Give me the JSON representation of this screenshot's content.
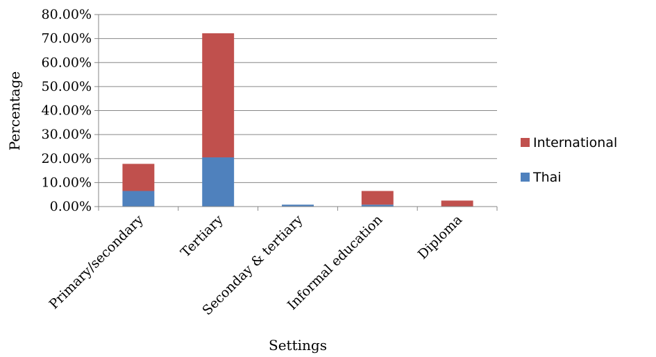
{
  "chart_data": {
    "type": "bar",
    "stacked": true,
    "title": "",
    "xlabel": "Settings",
    "ylabel": "Percentage",
    "ylim": [
      0,
      0.8
    ],
    "y_tick_step": 0.1,
    "y_tick_labels": [
      "0.00%",
      "10.00%",
      "20.00%",
      "30.00%",
      "40.00%",
      "50.00%",
      "60.00%",
      "70.00%",
      "80.00%"
    ],
    "categories": [
      "Primary/secondary",
      "Tertiary",
      "Seconday & tertiary",
      "Informal education",
      "Diploma"
    ],
    "series": [
      {
        "name": "Thai",
        "color": "#4F81BD",
        "values": [
          0.065,
          0.205,
          0.008,
          0.008,
          0.0
        ]
      },
      {
        "name": "International",
        "color": "#C0504D",
        "values": [
          0.113,
          0.517,
          0.0,
          0.057,
          0.025
        ]
      }
    ],
    "grid": true,
    "legend_position": "right",
    "legend_order": [
      "International",
      "Thai"
    ]
  }
}
